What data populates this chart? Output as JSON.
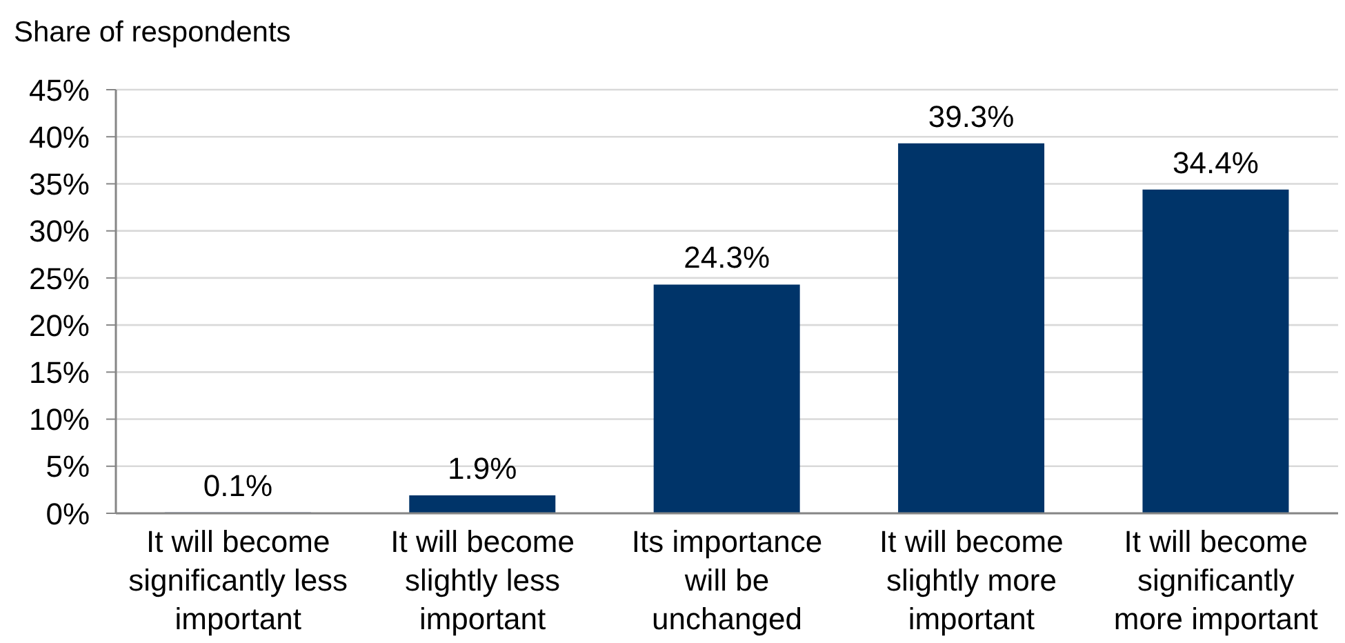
{
  "chart_data": {
    "type": "bar",
    "ylabel": "Share of respondents",
    "categories": [
      "It will become significantly less important",
      "It will become slightly less important",
      "Its importance will be unchanged",
      "It will become slightly more important",
      "It will become significantly more important"
    ],
    "values": [
      0.1,
      1.9,
      24.3,
      39.3,
      34.4
    ],
    "color": "#003469",
    "value_labels": [
      "0.1%",
      "1.9%",
      "24.3%",
      "39.3%",
      "34.4%"
    ],
    "ylim": [
      0,
      45
    ],
    "yticks": [
      {
        "value": 0,
        "label": "0%"
      },
      {
        "value": 5,
        "label": "5%"
      },
      {
        "value": 10,
        "label": "10%"
      },
      {
        "value": 15,
        "label": "15%"
      },
      {
        "value": 20,
        "label": "20%"
      },
      {
        "value": 25,
        "label": "25%"
      },
      {
        "value": 30,
        "label": "30%"
      },
      {
        "value": 35,
        "label": "35%"
      },
      {
        "value": 40,
        "label": "40%"
      },
      {
        "value": 45,
        "label": "45%"
      }
    ],
    "grid": "y"
  }
}
